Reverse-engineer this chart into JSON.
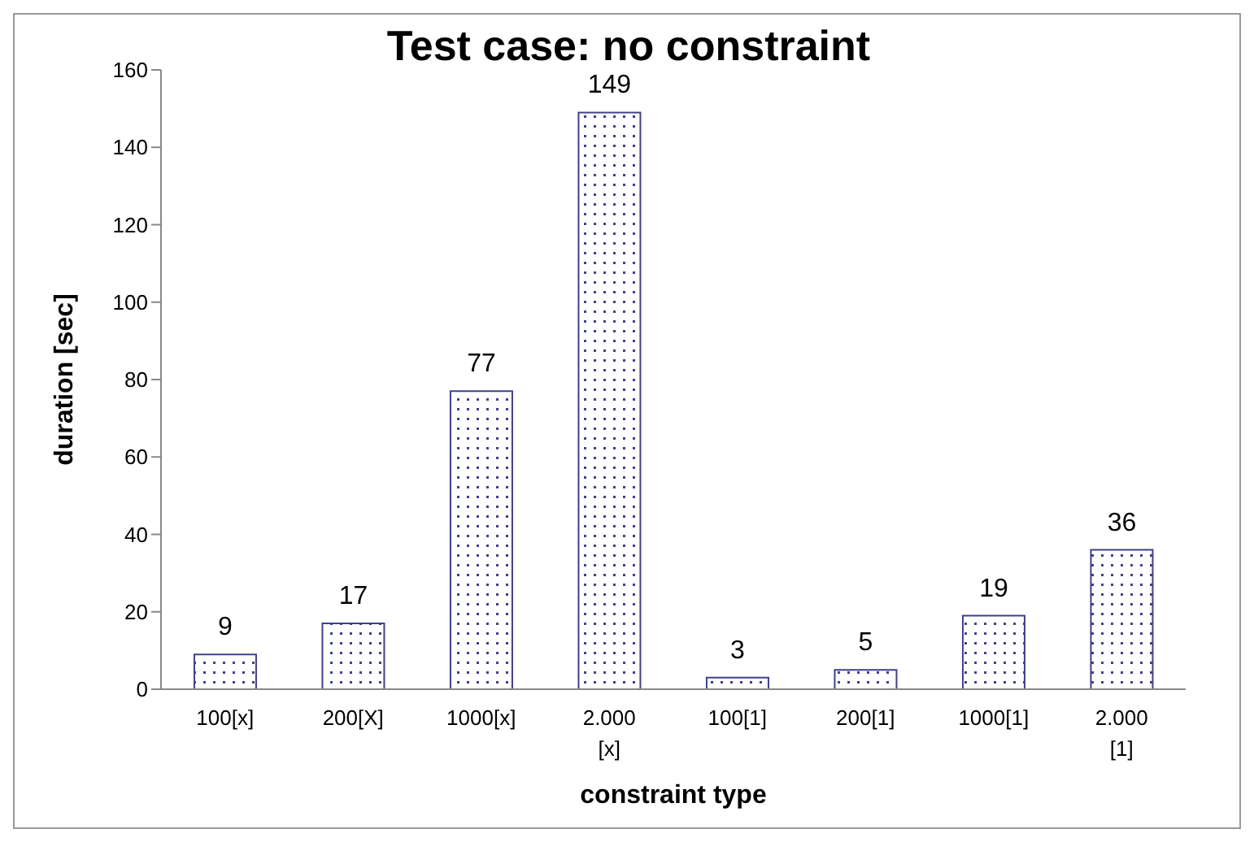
{
  "chart_data": {
    "type": "bar",
    "title": "Test case: no constraint",
    "xlabel": "constraint type",
    "ylabel": "duration [sec]",
    "categories": [
      "100[x]",
      "200[X]",
      "1000[x]",
      "2.000 [x]",
      "100[1]",
      "200[1]",
      "1000[1]",
      "2.000 [1]"
    ],
    "values": [
      9,
      17,
      77,
      149,
      3,
      5,
      19,
      36
    ],
    "color": "#40408c",
    "ylim": [
      0,
      160
    ],
    "yticks": [
      0,
      20,
      40,
      60,
      80,
      100,
      120,
      140,
      160
    ],
    "data_labels": true,
    "grid": false
  }
}
